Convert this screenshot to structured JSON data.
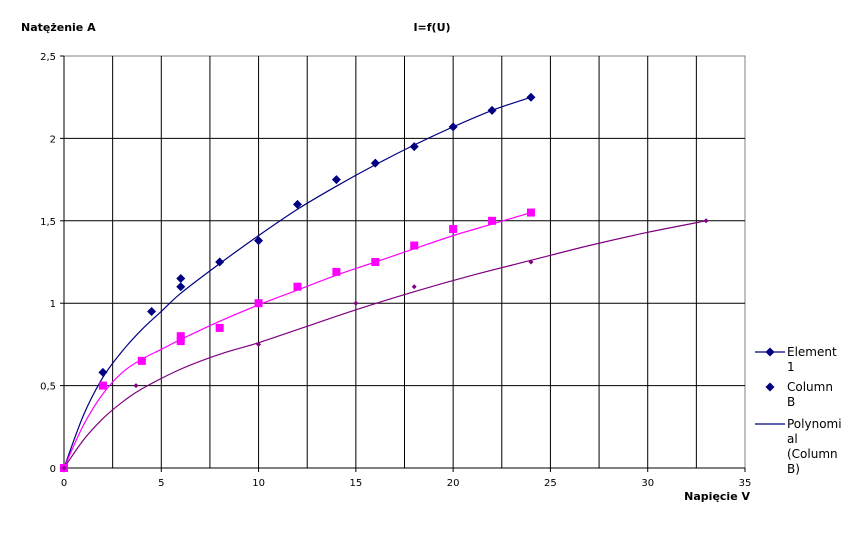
{
  "chart_data": {
    "type": "scatter",
    "title": "I=f(U)",
    "xlabel": "Napięcie V",
    "ylabel": "Natężenie A",
    "xlim": [
      0,
      35
    ],
    "ylim": [
      0,
      2.5
    ],
    "x_ticks": [
      0,
      5,
      10,
      15,
      20,
      25,
      30,
      35
    ],
    "y_ticks": [
      0,
      0.5,
      1,
      1.5,
      2,
      2.5
    ],
    "x_tick_labels": [
      "0",
      "5",
      "10",
      "15",
      "20",
      "25",
      "30",
      "35"
    ],
    "y_tick_labels": [
      "0",
      "0,5",
      "1",
      "1,5",
      "2",
      "2,5"
    ],
    "grid": true,
    "legend_position": "right",
    "series": [
      {
        "name": "Element 1",
        "legend_lines": [
          "Element",
          "1"
        ],
        "marker": "diamond",
        "color": "#000080",
        "x": [
          0,
          2,
          4.5,
          6,
          6,
          8,
          10,
          12,
          14,
          16,
          18,
          20,
          22,
          24
        ],
        "y": [
          0,
          0.58,
          0.95,
          1.1,
          1.15,
          1.25,
          1.38,
          1.6,
          1.75,
          1.85,
          1.95,
          2.07,
          2.17,
          2.25
        ],
        "trend_x": [
          0,
          1,
          2,
          3,
          4,
          5,
          6,
          8,
          10,
          12,
          14,
          16,
          18,
          20,
          22,
          24
        ],
        "trend_y": [
          0,
          0.32,
          0.55,
          0.71,
          0.84,
          0.95,
          1.06,
          1.24,
          1.41,
          1.57,
          1.71,
          1.84,
          1.96,
          2.07,
          2.17,
          2.25
        ]
      },
      {
        "name": "Column B",
        "legend_lines": [
          "Column",
          "B"
        ],
        "marker": "square",
        "color": "#ff00ff",
        "x": [
          0,
          2,
          4,
          6,
          6,
          8,
          10,
          12,
          14,
          16,
          18,
          20,
          22,
          24
        ],
        "y": [
          0,
          0.5,
          0.65,
          0.77,
          0.8,
          0.85,
          1.0,
          1.1,
          1.19,
          1.25,
          1.35,
          1.45,
          1.5,
          1.55
        ],
        "trend_x": [
          0,
          1,
          2,
          3,
          4,
          5,
          6,
          8,
          10,
          12,
          14,
          16,
          18,
          20,
          22,
          24
        ],
        "trend_y": [
          0,
          0.26,
          0.45,
          0.58,
          0.66,
          0.72,
          0.78,
          0.89,
          0.99,
          1.08,
          1.17,
          1.25,
          1.33,
          1.41,
          1.48,
          1.55
        ]
      },
      {
        "name": "Polynomial (Column B)",
        "legend_lines": [
          "Polynomi",
          "al",
          "(Column",
          "B)"
        ],
        "marker": "small-diamond",
        "color": "#800080",
        "x": [
          0,
          3.7,
          10,
          15,
          18,
          24,
          33
        ],
        "y": [
          0,
          0.5,
          0.75,
          1.0,
          1.1,
          1.25,
          1.5
        ],
        "trend_x": [
          0,
          1,
          2,
          3,
          4,
          6,
          8,
          10,
          12,
          15,
          18,
          21,
          24,
          27,
          30,
          33
        ],
        "trend_y": [
          0,
          0.17,
          0.3,
          0.4,
          0.48,
          0.6,
          0.69,
          0.76,
          0.84,
          0.96,
          1.07,
          1.17,
          1.26,
          1.35,
          1.43,
          1.5
        ]
      }
    ]
  }
}
